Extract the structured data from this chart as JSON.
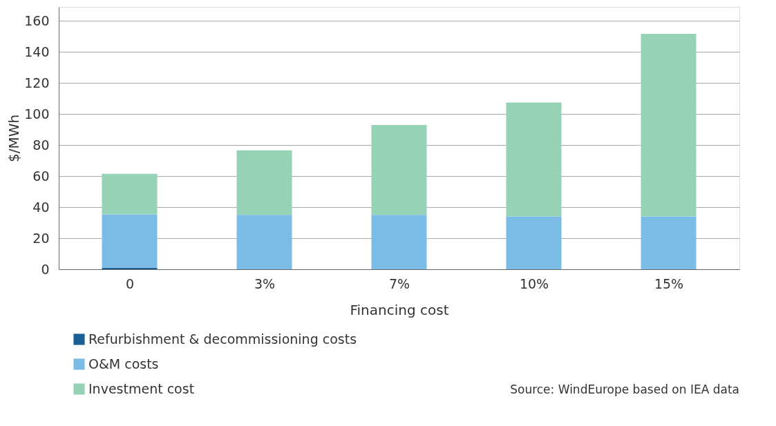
{
  "chart_data": {
    "type": "bar",
    "stacked": true,
    "xlabel": "Financing cost",
    "ylabel": "$/MWh",
    "categories": [
      "0",
      "3%",
      "7%",
      "10%",
      "15%"
    ],
    "series": [
      {
        "name": "Refurbishment & decommissioning costs",
        "color": "#1a5f96",
        "values": [
          1,
          0,
          0,
          0,
          0
        ]
      },
      {
        "name": "O&M costs",
        "color": "#7abce6",
        "values": [
          34.4,
          35,
          35,
          34,
          34
        ]
      },
      {
        "name": "Investment cost",
        "color": "#96d2b6",
        "values": [
          26.1,
          41.6,
          58,
          73.4,
          117.6
        ]
      }
    ],
    "ylim": [
      0,
      169
    ],
    "yticks": [
      0,
      20,
      40,
      60,
      80,
      100,
      120,
      140,
      160
    ],
    "grid": "y",
    "legend": "bottom left",
    "annotations": [
      "Source: WindEurope based on IEA data"
    ]
  }
}
